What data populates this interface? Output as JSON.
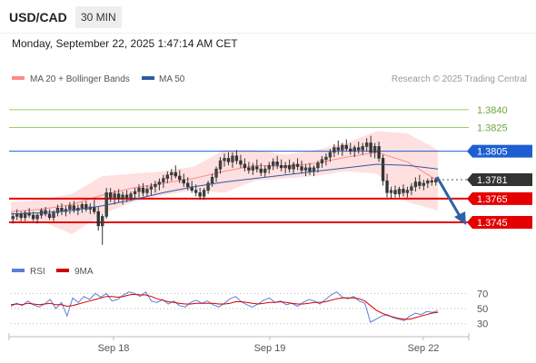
{
  "header": {
    "symbol": "USD/CAD",
    "interval": "30 MIN",
    "datetime": "Monday, September 22, 2025 1:47:14 AM CET"
  },
  "legend": {
    "bb_label": "MA 20 + Bollinger Bands",
    "ma50_label": "MA 50",
    "credit": "Research © 2025 Trading Central"
  },
  "rsi_legend": {
    "rsi_label": "RSI",
    "ma_label": "9MA"
  },
  "colors": {
    "up": "#3a3a3a",
    "down": "#3a3a3a",
    "bb_band": "#ffd6d6",
    "bb_line": "#ff8a8a",
    "ma50": "#2e5a9e",
    "resistance": "#9ccc6b",
    "pivot": "#1d5fd1",
    "support": "#e50000",
    "last": "#333333",
    "rsi": "#5b7fd8",
    "rsi_ma": "#d20000",
    "arrow": "#2c63a8"
  },
  "chart_data": [
    {
      "type": "candlestick",
      "title": "USD/CAD",
      "x_ticks": [
        "Sep 18",
        "Sep 19",
        "Sep 22"
      ],
      "levels": [
        {
          "value": 1.384,
          "label": "1.3840",
          "kind": "resistance"
        },
        {
          "value": 1.3825,
          "label": "1.3825",
          "kind": "resistance"
        },
        {
          "value": 1.3805,
          "label": "1.3805",
          "kind": "pivot"
        },
        {
          "value": 1.3781,
          "label": "1.3781",
          "kind": "last"
        },
        {
          "value": 1.3765,
          "label": "1.3765",
          "kind": "support"
        },
        {
          "value": 1.3745,
          "label": "1.3745",
          "kind": "support"
        }
      ],
      "ylim": [
        1.3722,
        1.3856
      ],
      "candles": [
        [
          1.3748,
          1.3753,
          1.3744,
          1.375
        ],
        [
          1.375,
          1.3756,
          1.3747,
          1.3752
        ],
        [
          1.3752,
          1.3754,
          1.3746,
          1.3749
        ],
        [
          1.3749,
          1.3755,
          1.3746,
          1.3753
        ],
        [
          1.3753,
          1.3757,
          1.3749,
          1.3751
        ],
        [
          1.3751,
          1.3754,
          1.3746,
          1.3748
        ],
        [
          1.3748,
          1.3753,
          1.3744,
          1.3751
        ],
        [
          1.3751,
          1.3757,
          1.3748,
          1.3755
        ],
        [
          1.3755,
          1.3758,
          1.375,
          1.3752
        ],
        [
          1.3752,
          1.3756,
          1.3747,
          1.3749
        ],
        [
          1.3749,
          1.3755,
          1.3746,
          1.3753
        ],
        [
          1.3753,
          1.376,
          1.375,
          1.3757
        ],
        [
          1.3757,
          1.3761,
          1.3751,
          1.3754
        ],
        [
          1.3754,
          1.3759,
          1.375,
          1.3756
        ],
        [
          1.3756,
          1.3762,
          1.3752,
          1.3759
        ],
        [
          1.3759,
          1.3763,
          1.3753,
          1.3755
        ],
        [
          1.3755,
          1.376,
          1.3751,
          1.3757
        ],
        [
          1.3757,
          1.3762,
          1.3753,
          1.376
        ],
        [
          1.376,
          1.3763,
          1.3754,
          1.3756
        ],
        [
          1.3756,
          1.3761,
          1.3752,
          1.3758
        ],
        [
          1.3758,
          1.3764,
          1.3752,
          1.3754
        ],
        [
          1.3754,
          1.3758,
          1.3738,
          1.3742
        ],
        [
          1.3742,
          1.3752,
          1.3726,
          1.375
        ],
        [
          1.375,
          1.3774,
          1.3748,
          1.377
        ],
        [
          1.377,
          1.3774,
          1.3762,
          1.3766
        ],
        [
          1.3766,
          1.3772,
          1.376,
          1.3769
        ],
        [
          1.3769,
          1.3773,
          1.3762,
          1.3765
        ],
        [
          1.3765,
          1.3771,
          1.376,
          1.3768
        ],
        [
          1.3768,
          1.3772,
          1.3762,
          1.3766
        ],
        [
          1.3766,
          1.3771,
          1.3763,
          1.3769
        ],
        [
          1.3769,
          1.3774,
          1.3764,
          1.3771
        ],
        [
          1.3771,
          1.3777,
          1.3766,
          1.3774
        ],
        [
          1.3774,
          1.3778,
          1.3767,
          1.377
        ],
        [
          1.377,
          1.3776,
          1.3767,
          1.3773
        ],
        [
          1.3773,
          1.3778,
          1.3768,
          1.3775
        ],
        [
          1.3775,
          1.378,
          1.377,
          1.3777
        ],
        [
          1.3777,
          1.3782,
          1.3772,
          1.3779
        ],
        [
          1.3779,
          1.3785,
          1.3774,
          1.3782
        ],
        [
          1.3782,
          1.3788,
          1.3778,
          1.3785
        ],
        [
          1.3785,
          1.379,
          1.378,
          1.3787
        ],
        [
          1.3787,
          1.3793,
          1.3782,
          1.3784
        ],
        [
          1.3784,
          1.3789,
          1.3778,
          1.3781
        ],
        [
          1.3781,
          1.3786,
          1.3775,
          1.3778
        ],
        [
          1.3778,
          1.3783,
          1.3772,
          1.3775
        ],
        [
          1.3775,
          1.378,
          1.377,
          1.3772
        ],
        [
          1.3772,
          1.3777,
          1.3767,
          1.377
        ],
        [
          1.377,
          1.3774,
          1.3764,
          1.3767
        ],
        [
          1.3767,
          1.3774,
          1.3764,
          1.3772
        ],
        [
          1.3772,
          1.378,
          1.3769,
          1.3778
        ],
        [
          1.3778,
          1.3786,
          1.3775,
          1.3783
        ],
        [
          1.3783,
          1.3792,
          1.3779,
          1.379
        ],
        [
          1.379,
          1.38,
          1.3786,
          1.3797
        ],
        [
          1.3797,
          1.3803,
          1.3792,
          1.3799
        ],
        [
          1.3799,
          1.3804,
          1.3793,
          1.3796
        ],
        [
          1.3796,
          1.3804,
          1.3791,
          1.3801
        ],
        [
          1.3801,
          1.3806,
          1.3794,
          1.3797
        ],
        [
          1.3797,
          1.3802,
          1.3791,
          1.3794
        ],
        [
          1.3794,
          1.3799,
          1.3788,
          1.3791
        ],
        [
          1.3791,
          1.3796,
          1.3786,
          1.3789
        ],
        [
          1.3789,
          1.3795,
          1.3785,
          1.3792
        ],
        [
          1.3792,
          1.3798,
          1.3787,
          1.379
        ],
        [
          1.379,
          1.3795,
          1.3784,
          1.3787
        ],
        [
          1.3787,
          1.3793,
          1.3783,
          1.379
        ],
        [
          1.379,
          1.3796,
          1.3786,
          1.3793
        ],
        [
          1.3793,
          1.3799,
          1.3789,
          1.3796
        ],
        [
          1.3796,
          1.3801,
          1.379,
          1.3793
        ],
        [
          1.3793,
          1.3798,
          1.3788,
          1.3791
        ],
        [
          1.3791,
          1.3796,
          1.3786,
          1.3793
        ],
        [
          1.3793,
          1.3798,
          1.3787,
          1.379
        ],
        [
          1.379,
          1.3796,
          1.3786,
          1.3794
        ],
        [
          1.3794,
          1.3799,
          1.3789,
          1.3792
        ],
        [
          1.3792,
          1.3797,
          1.3786,
          1.3789
        ],
        [
          1.3789,
          1.3794,
          1.3784,
          1.3791
        ],
        [
          1.3791,
          1.3795,
          1.3785,
          1.3788
        ],
        [
          1.3788,
          1.3793,
          1.3784,
          1.3791
        ],
        [
          1.3791,
          1.3797,
          1.3787,
          1.3795
        ],
        [
          1.3795,
          1.3801,
          1.3791,
          1.3798
        ],
        [
          1.3798,
          1.3803,
          1.3793,
          1.38
        ],
        [
          1.38,
          1.3807,
          1.3796,
          1.3804
        ],
        [
          1.3804,
          1.3811,
          1.38,
          1.3808
        ],
        [
          1.3808,
          1.3814,
          1.3802,
          1.3806
        ],
        [
          1.3806,
          1.3812,
          1.3801,
          1.381
        ],
        [
          1.381,
          1.3815,
          1.3805,
          1.3807
        ],
        [
          1.3807,
          1.3812,
          1.3802,
          1.3805
        ],
        [
          1.3805,
          1.381,
          1.38,
          1.3808
        ],
        [
          1.3808,
          1.3813,
          1.3803,
          1.3806
        ],
        [
          1.3806,
          1.3812,
          1.3802,
          1.3809
        ],
        [
          1.3809,
          1.3816,
          1.3805,
          1.3812
        ],
        [
          1.3812,
          1.3818,
          1.38,
          1.3804
        ],
        [
          1.3804,
          1.3812,
          1.3799,
          1.3809
        ],
        [
          1.3809,
          1.3813,
          1.3796,
          1.3799
        ],
        [
          1.3799,
          1.3802,
          1.3776,
          1.378
        ],
        [
          1.378,
          1.3786,
          1.3766,
          1.377
        ],
        [
          1.377,
          1.3775,
          1.3765,
          1.3772
        ],
        [
          1.3772,
          1.3776,
          1.3766,
          1.3769
        ],
        [
          1.3769,
          1.3775,
          1.3766,
          1.3773
        ],
        [
          1.3773,
          1.3777,
          1.3767,
          1.377
        ],
        [
          1.377,
          1.3775,
          1.3766,
          1.3772
        ],
        [
          1.3772,
          1.3778,
          1.3768,
          1.3775
        ],
        [
          1.3775,
          1.3783,
          1.3771,
          1.3779
        ],
        [
          1.3779,
          1.3785,
          1.3773,
          1.3776
        ],
        [
          1.3776,
          1.3781,
          1.3772,
          1.3778
        ],
        [
          1.3778,
          1.3782,
          1.3774,
          1.378
        ],
        [
          1.378,
          1.3783,
          1.3776,
          1.3779
        ],
        [
          1.3779,
          1.3783,
          1.3776,
          1.3781
        ]
      ],
      "ma50": [
        1.3752,
        1.3753,
        1.3755,
        1.3759,
        1.3764,
        1.377,
        1.3775,
        1.3779,
        1.3782,
        1.3785,
        1.3788,
        1.3791,
        1.3794,
        1.3793,
        1.379
      ],
      "bb_mid": [
        1.3754,
        1.3756,
        1.376,
        1.3768,
        1.3774,
        1.3778,
        1.3782,
        1.3788,
        1.3793,
        1.3792,
        1.3795,
        1.38,
        1.3804,
        1.3796,
        1.378
      ],
      "bb_upper": [
        1.3762,
        1.3764,
        1.3769,
        1.3784,
        1.3786,
        1.3788,
        1.3792,
        1.3806,
        1.3806,
        1.3802,
        1.3806,
        1.3812,
        1.3822,
        1.382,
        1.3806
      ],
      "bb_lower": [
        1.3744,
        1.3746,
        1.3735,
        1.3752,
        1.3762,
        1.3768,
        1.3772,
        1.377,
        1.378,
        1.3782,
        1.3784,
        1.3788,
        1.3786,
        1.3762,
        1.3755
      ]
    },
    {
      "type": "line",
      "title": "RSI",
      "y_ticks": [
        70,
        50,
        30
      ],
      "ylim": [
        20,
        80
      ],
      "series": [
        {
          "name": "RSI",
          "values": [
            53,
            57,
            54,
            60,
            55,
            52,
            56,
            62,
            50,
            58,
            40,
            64,
            58,
            66,
            62,
            70,
            65,
            70,
            60,
            62,
            68,
            72,
            70,
            66,
            72,
            60,
            58,
            62,
            56,
            60,
            54,
            52,
            58,
            61,
            57,
            60,
            55,
            52,
            57,
            63,
            66,
            59,
            55,
            52,
            56,
            61,
            64,
            58,
            60,
            55,
            57,
            53,
            58,
            62,
            60,
            56,
            62,
            68,
            72,
            65,
            63,
            66,
            60,
            57,
            32,
            36,
            40,
            42,
            38,
            36,
            34,
            40,
            44,
            42,
            46,
            45,
            47
          ]
        },
        {
          "name": "9MA",
          "values": [
            55,
            56,
            55,
            57,
            56,
            55,
            56,
            57,
            55,
            55,
            53,
            54,
            56,
            58,
            60,
            62,
            64,
            66,
            66,
            65,
            66,
            68,
            69,
            68,
            68,
            66,
            63,
            61,
            59,
            58,
            57,
            56,
            56,
            57,
            57,
            57,
            57,
            56,
            56,
            57,
            59,
            59,
            58,
            57,
            56,
            57,
            58,
            58,
            59,
            58,
            57,
            56,
            56,
            57,
            58,
            58,
            59,
            61,
            63,
            64,
            64,
            64,
            63,
            60,
            54,
            48,
            44,
            41,
            39,
            37,
            36,
            36,
            38,
            40,
            42,
            44,
            45
          ]
        }
      ]
    }
  ]
}
